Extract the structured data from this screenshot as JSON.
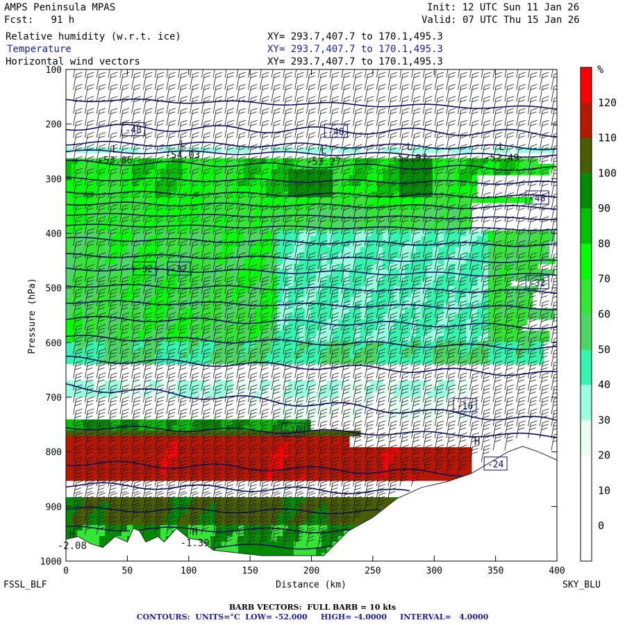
{
  "header": {
    "model": "AMPS Peninsula MPAS",
    "fcst_label": "Fcst:",
    "fcst_value": "91 h",
    "init": "Init: 12 UTC Sun 11 Jan 26",
    "valid": "Valid: 07 UTC Thu 15 Jan 26",
    "fields": [
      {
        "name": "Relative humidity (w.r.t. ice)",
        "xy": "XY= 293.7,407.7 to 170.1,495.3"
      },
      {
        "name": "Temperature",
        "xy": "XY= 293.7,407.7 to 170.1,495.3"
      },
      {
        "name": "Horizontal wind vectors",
        "xy": "XY= 293.7,407.7 to 170.1,495.3"
      }
    ],
    "temperature_color": "#1a1aa6"
  },
  "footer": {
    "left_station": "FSSL_BLF",
    "right_station": "SKY_BLU",
    "barb_note": "BARB VECTORS:  FULL BARB = 10 kts",
    "contours_note": "CONTOURS:  UNITS=°C  LOW= -52.000     HIGH= -4.0000     INTERVAL=   4.0000",
    "contours_color": "#1a1aa6"
  },
  "chart_data": {
    "type": "heatmap",
    "xlabel": "Distance (km)",
    "ylabel": "Pressure (hPa)",
    "xlim": [
      0,
      400
    ],
    "ylim": [
      1000,
      100
    ],
    "x_ticks": [
      0,
      50,
      100,
      150,
      200,
      250,
      300,
      350,
      400
    ],
    "y_ticks": [
      100,
      200,
      300,
      400,
      500,
      600,
      700,
      800,
      900,
      1000
    ],
    "colorbar": {
      "unit": "%",
      "levels": [
        0,
        10,
        20,
        30,
        40,
        50,
        60,
        70,
        80,
        90,
        100,
        110,
        120
      ],
      "colors": [
        "#ffffff",
        "#ffffff",
        "#ffffff",
        "#e6fff2",
        "#99ffe0",
        "#33f5b0",
        "#4cd664",
        "#33e633",
        "#00ff00",
        "#00c000",
        "#008c00",
        "#4a5e00",
        "#b81800",
        "#ff0000"
      ]
    },
    "temperature_contours_C": {
      "low": -52,
      "high": -4,
      "interval": 4
    },
    "contour_labels": [
      {
        "text": "-48",
        "x": 55,
        "p": 210
      },
      {
        "text": "-48",
        "x": 220,
        "p": 213
      },
      {
        "text": "-48",
        "x": 384,
        "p": 335
      },
      {
        "text": "-32",
        "x": 64,
        "p": 465
      },
      {
        "text": "-32",
        "x": 92,
        "p": 465
      },
      {
        "text": "-32",
        "x": 384,
        "p": 490
      },
      {
        "text": "-16",
        "x": 325,
        "p": 715
      },
      {
        "text": "-16",
        "x": 185,
        "p": 760
      },
      {
        "text": "-24",
        "x": 350,
        "p": 822
      }
    ],
    "extrema": [
      {
        "symbol": "L",
        "value": "-53.86",
        "x": 40,
        "p": 270
      },
      {
        "symbol": "L",
        "value": "-54.03",
        "x": 95,
        "p": 260
      },
      {
        "symbol": "L",
        "value": "-53.27",
        "x": 210,
        "p": 272
      },
      {
        "symbol": "L",
        "value": "-52.97",
        "x": 280,
        "p": 265
      },
      {
        "symbol": "L",
        "value": "-52.49",
        "x": 355,
        "p": 265
      },
      {
        "symbol": "H",
        "value": "-2.08",
        "x": 5,
        "p": 975
      },
      {
        "symbol": "H",
        "value": "-1.39",
        "x": 105,
        "p": 970
      },
      {
        "symbol": "H",
        "value": "",
        "x": 335,
        "p": 805
      }
    ],
    "terrain_profile": [
      [
        0,
        960
      ],
      [
        10,
        955
      ],
      [
        20,
        968
      ],
      [
        30,
        975
      ],
      [
        40,
        955
      ],
      [
        50,
        965
      ],
      [
        55,
        940
      ],
      [
        60,
        945
      ],
      [
        65,
        965
      ],
      [
        75,
        955
      ],
      [
        80,
        965
      ],
      [
        90,
        940
      ],
      [
        100,
        958
      ],
      [
        110,
        962
      ],
      [
        120,
        980
      ],
      [
        140,
        985
      ],
      [
        160,
        990
      ],
      [
        210,
        990
      ],
      [
        230,
        945
      ],
      [
        250,
        920
      ],
      [
        270,
        885
      ],
      [
        290,
        865
      ],
      [
        310,
        855
      ],
      [
        330,
        840
      ],
      [
        345,
        820
      ],
      [
        360,
        800
      ],
      [
        372,
        790
      ],
      [
        385,
        800
      ],
      [
        400,
        815
      ]
    ]
  }
}
